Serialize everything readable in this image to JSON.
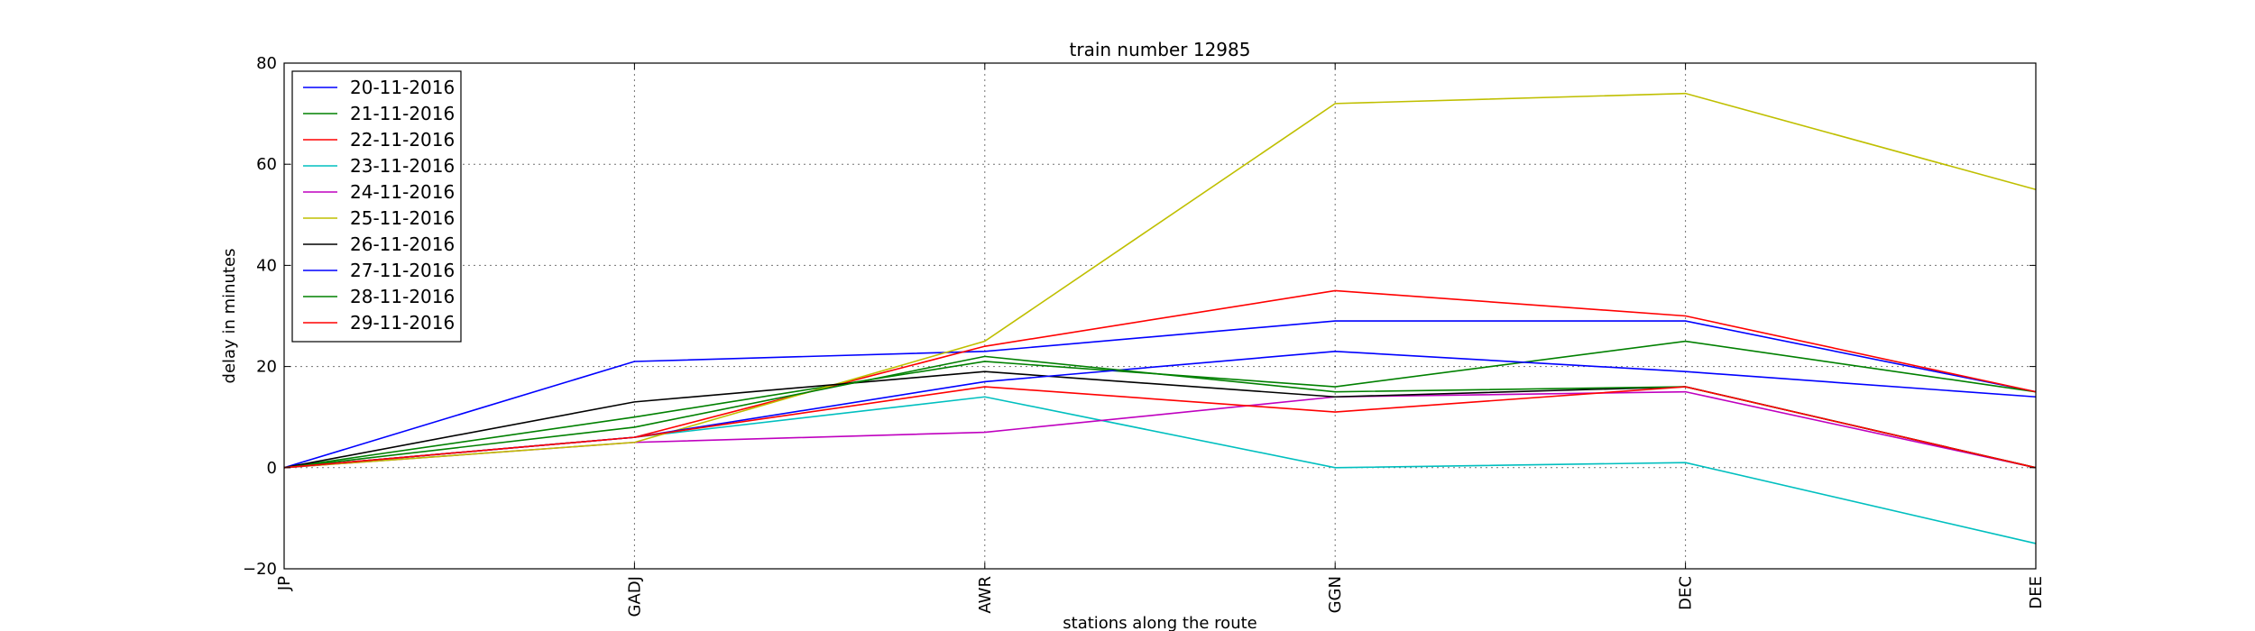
{
  "chart_data": {
    "type": "line",
    "title": "train number 12985",
    "xlabel": "stations along the route",
    "ylabel": "delay in minutes",
    "categories": [
      "JP",
      "GADJ",
      "AWR",
      "GGN",
      "DEC",
      "DEE"
    ],
    "ylim": [
      -20,
      80
    ],
    "yticks": [
      -20,
      0,
      20,
      40,
      60,
      80
    ],
    "grid": true,
    "legend_position": "upper-left",
    "series": [
      {
        "name": "20-11-2016",
        "color": "#0000ff",
        "values": [
          0,
          21,
          23,
          29,
          29,
          15
        ]
      },
      {
        "name": "21-11-2016",
        "color": "#008000",
        "values": [
          0,
          10,
          21,
          16,
          25,
          15
        ]
      },
      {
        "name": "22-11-2016",
        "color": "#ff0000",
        "values": [
          0,
          6,
          24,
          35,
          30,
          15
        ]
      },
      {
        "name": "23-11-2016",
        "color": "#00bfbf",
        "values": [
          0,
          6,
          14,
          0,
          1,
          -15
        ]
      },
      {
        "name": "24-11-2016",
        "color": "#bf00bf",
        "values": [
          0,
          5,
          7,
          14,
          15,
          0
        ]
      },
      {
        "name": "25-11-2016",
        "color": "#bfbf00",
        "values": [
          0,
          5,
          25,
          72,
          74,
          55
        ]
      },
      {
        "name": "26-11-2016",
        "color": "#000000",
        "values": [
          0,
          13,
          19,
          14,
          16,
          0
        ]
      },
      {
        "name": "27-11-2016",
        "color": "#0000ff",
        "values": [
          0,
          6,
          17,
          23,
          19,
          14
        ]
      },
      {
        "name": "28-11-2016",
        "color": "#008000",
        "values": [
          0,
          8,
          22,
          15,
          16,
          0
        ]
      },
      {
        "name": "29-11-2016",
        "color": "#ff0000",
        "values": [
          0,
          6,
          16,
          11,
          16,
          0
        ]
      }
    ]
  }
}
